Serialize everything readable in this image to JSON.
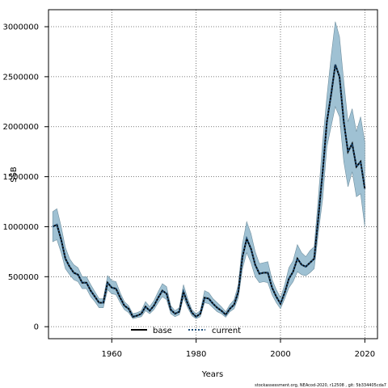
{
  "chart_data": {
    "type": "line",
    "xlabel": "Years",
    "ylabel": "SSB",
    "xlim": [
      1945,
      2023
    ],
    "ylim": [
      -120000,
      3170000
    ],
    "xticks": [
      1960,
      1980,
      2000,
      2020
    ],
    "yticks": [
      0,
      500000,
      1000000,
      1500000,
      2000000,
      2500000,
      3000000
    ],
    "grid": true,
    "legend": {
      "position": "bottom-left"
    },
    "footer": "stockassessment.org, NEAcod-2020, r12508 , git: 5b334405cda7",
    "colors": {
      "band": "#9fc1d3",
      "band_edge": "#6f8f9f",
      "line": "#000000",
      "current": "#1f4e79"
    },
    "series": [
      {
        "name": "base",
        "style": "solid",
        "x": [
          1946,
          1947,
          1948,
          1949,
          1950,
          1951,
          1952,
          1953,
          1954,
          1955,
          1956,
          1957,
          1958,
          1959,
          1960,
          1961,
          1962,
          1963,
          1964,
          1965,
          1966,
          1967,
          1968,
          1969,
          1970,
          1971,
          1972,
          1973,
          1974,
          1975,
          1976,
          1977,
          1978,
          1979,
          1980,
          1981,
          1982,
          1983,
          1984,
          1985,
          1986,
          1987,
          1988,
          1989,
          1990,
          1991,
          1992,
          1993,
          1994,
          1995,
          1996,
          1997,
          1998,
          1999,
          2000,
          2001,
          2002,
          2003,
          2004,
          2005,
          2006,
          2007,
          2008,
          2009,
          2010,
          2011,
          2012,
          2013,
          2014,
          2015,
          2016,
          2017,
          2018,
          2019,
          2020
        ],
        "y": [
          1000000,
          1020000,
          870000,
          680000,
          600000,
          540000,
          520000,
          440000,
          440000,
          360000,
          300000,
          240000,
          240000,
          440000,
          390000,
          380000,
          290000,
          210000,
          180000,
          100000,
          110000,
          130000,
          200000,
          160000,
          210000,
          290000,
          360000,
          330000,
          170000,
          130000,
          150000,
          350000,
          230000,
          140000,
          100000,
          130000,
          290000,
          280000,
          230000,
          190000,
          160000,
          120000,
          180000,
          220000,
          350000,
          700000,
          880000,
          780000,
          620000,
          530000,
          540000,
          540000,
          390000,
          300000,
          230000,
          340000,
          480000,
          550000,
          680000,
          620000,
          600000,
          640000,
          680000,
          1100000,
          1550000,
          2050000,
          2320000,
          2620000,
          2500000,
          2050000,
          1750000,
          1830000,
          1600000,
          1650000,
          1380000
        ]
      },
      {
        "name": "current",
        "style": "dotted",
        "x": [
          1946,
          1947,
          1948,
          1949,
          1950,
          1951,
          1952,
          1953,
          1954,
          1955,
          1956,
          1957,
          1958,
          1959,
          1960,
          1961,
          1962,
          1963,
          1964,
          1965,
          1966,
          1967,
          1968,
          1969,
          1970,
          1971,
          1972,
          1973,
          1974,
          1975,
          1976,
          1977,
          1978,
          1979,
          1980,
          1981,
          1982,
          1983,
          1984,
          1985,
          1986,
          1987,
          1988,
          1989,
          1990,
          1991,
          1992,
          1993,
          1994,
          1995,
          1996,
          1997,
          1998,
          1999,
          2000,
          2001,
          2002,
          2003,
          2004,
          2005,
          2006,
          2007,
          2008,
          2009,
          2010,
          2011,
          2012,
          2013,
          2014,
          2015,
          2016,
          2017,
          2018,
          2019,
          2020
        ],
        "y": [
          1000000,
          1020000,
          870000,
          680000,
          600000,
          540000,
          520000,
          440000,
          440000,
          360000,
          300000,
          240000,
          240000,
          440000,
          390000,
          380000,
          290000,
          210000,
          180000,
          100000,
          110000,
          130000,
          200000,
          160000,
          210000,
          290000,
          360000,
          330000,
          170000,
          130000,
          150000,
          350000,
          230000,
          140000,
          100000,
          130000,
          290000,
          280000,
          230000,
          190000,
          160000,
          120000,
          180000,
          220000,
          350000,
          700000,
          880000,
          780000,
          620000,
          530000,
          540000,
          540000,
          390000,
          300000,
          230000,
          340000,
          480000,
          550000,
          680000,
          620000,
          600000,
          640000,
          680000,
          1100000,
          1550000,
          2050000,
          2320000,
          2620000,
          2500000,
          2050000,
          1750000,
          1830000,
          1600000,
          1650000,
          1380000
        ]
      }
    ],
    "band": {
      "x": [
        1946,
        1947,
        1948,
        1949,
        1950,
        1951,
        1952,
        1953,
        1954,
        1955,
        1956,
        1957,
        1958,
        1959,
        1960,
        1961,
        1962,
        1963,
        1964,
        1965,
        1966,
        1967,
        1968,
        1969,
        1970,
        1971,
        1972,
        1973,
        1974,
        1975,
        1976,
        1977,
        1978,
        1979,
        1980,
        1981,
        1982,
        1983,
        1984,
        1985,
        1986,
        1987,
        1988,
        1989,
        1990,
        1991,
        1992,
        1993,
        1994,
        1995,
        1996,
        1997,
        1998,
        1999,
        2000,
        2001,
        2002,
        2003,
        2004,
        2005,
        2006,
        2007,
        2008,
        2009,
        2010,
        2011,
        2012,
        2013,
        2014,
        2015,
        2016,
        2017,
        2018,
        2019,
        2020
      ],
      "lower": [
        850000,
        870000,
        740000,
        580000,
        520000,
        470000,
        450000,
        380000,
        380000,
        300000,
        250000,
        190000,
        190000,
        370000,
        330000,
        320000,
        240000,
        170000,
        140000,
        80000,
        90000,
        100000,
        160000,
        130000,
        170000,
        240000,
        300000,
        270000,
        130000,
        100000,
        120000,
        290000,
        190000,
        110000,
        80000,
        100000,
        240000,
        230000,
        190000,
        150000,
        130000,
        95000,
        150000,
        180000,
        290000,
        580000,
        740000,
        640000,
        500000,
        440000,
        450000,
        440000,
        320000,
        240000,
        180000,
        280000,
        390000,
        450000,
        550000,
        520000,
        510000,
        540000,
        580000,
        940000,
        1280000,
        1800000,
        2000000,
        2200000,
        2100000,
        1650000,
        1400000,
        1550000,
        1300000,
        1330000,
        1000000
      ],
      "upper": [
        1150000,
        1180000,
        1000000,
        790000,
        680000,
        620000,
        590000,
        500000,
        500000,
        420000,
        350000,
        280000,
        280000,
        510000,
        460000,
        450000,
        340000,
        250000,
        210000,
        130000,
        140000,
        160000,
        250000,
        200000,
        260000,
        350000,
        430000,
        400000,
        210000,
        160000,
        190000,
        420000,
        280000,
        170000,
        130000,
        160000,
        360000,
        340000,
        280000,
        240000,
        200000,
        150000,
        220000,
        270000,
        420000,
        830000,
        1050000,
        930000,
        750000,
        630000,
        640000,
        650000,
        470000,
        370000,
        290000,
        420000,
        590000,
        660000,
        820000,
        740000,
        700000,
        760000,
        800000,
        1300000,
        1850000,
        2300000,
        2700000,
        3050000,
        2900000,
        2450000,
        2050000,
        2180000,
        1950000,
        2100000,
        1850000
      ]
    }
  }
}
